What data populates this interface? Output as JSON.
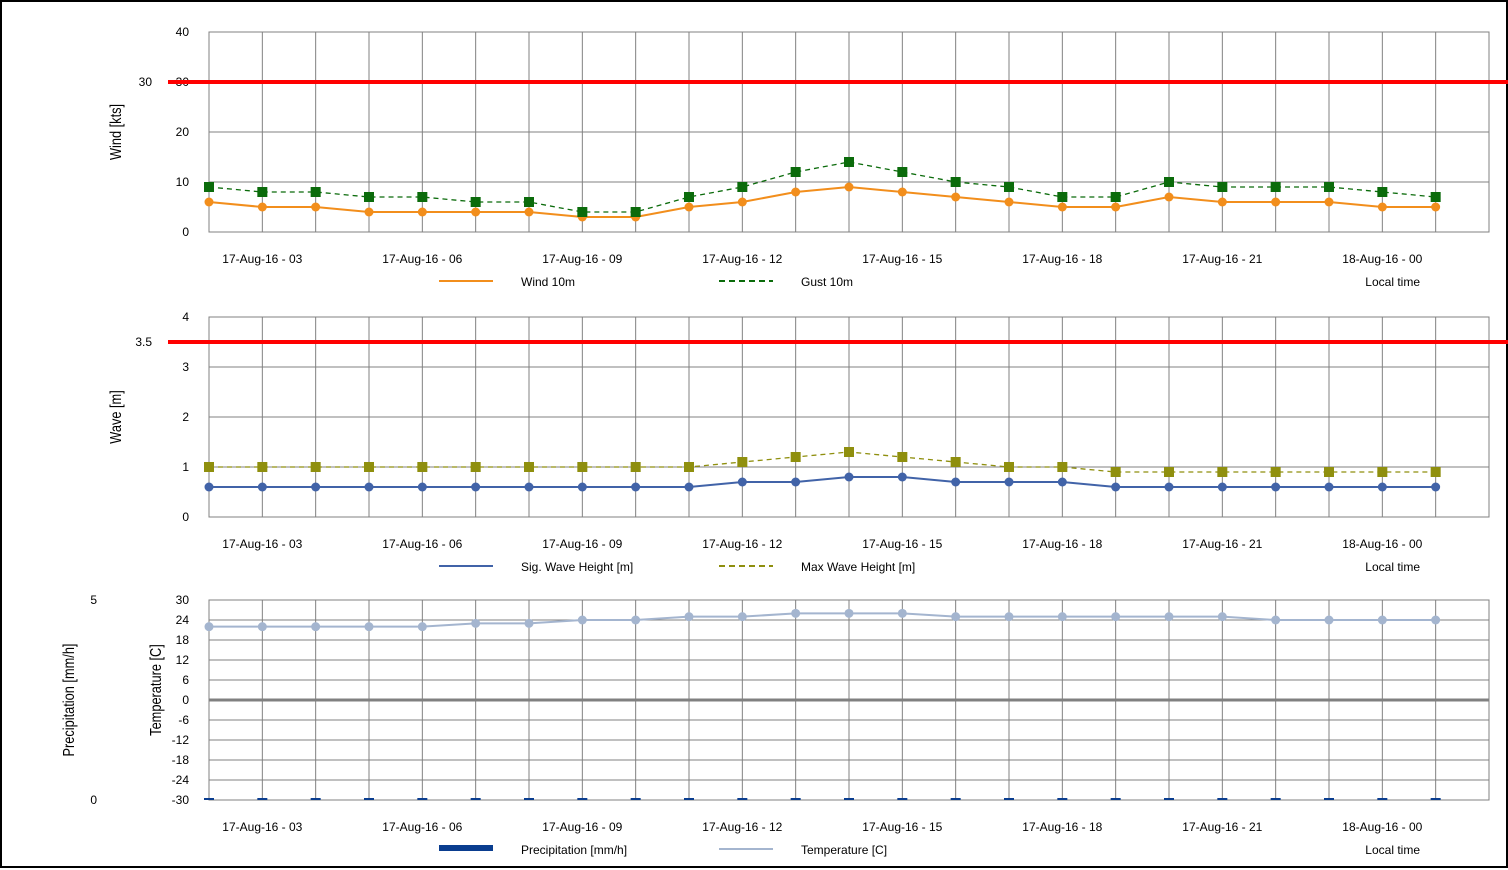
{
  "x_tick_labels": [
    "17-Aug-16 - 03",
    "17-Aug-16 - 06",
    "17-Aug-16 - 09",
    "17-Aug-16 - 12",
    "17-Aug-16 - 15",
    "17-Aug-16 - 18",
    "17-Aug-16 - 21",
    "18-Aug-16 - 00"
  ],
  "local_time_label": "Local time",
  "colors": {
    "threshold": "#ff0000",
    "wind": "#f28e1c",
    "gust": "#0b6b0b",
    "sig_wave": "#4163a8",
    "max_wave": "#8f8f0e",
    "precipitation": "#0a3d8f",
    "temperature": "#a4b5cf",
    "zero_line": "#808080",
    "grid": "#808080"
  },
  "chart_data": [
    {
      "type": "line",
      "id": "wind",
      "ylabel": "Wind [kts]",
      "ylim": [
        0,
        40
      ],
      "yticks": [
        0,
        10,
        20,
        30,
        40
      ],
      "grid": true,
      "legend": "bottom",
      "x": [
        "17-Aug-16 - 02",
        "17-Aug-16 - 03",
        "17-Aug-16 - 04",
        "17-Aug-16 - 05",
        "17-Aug-16 - 06",
        "17-Aug-16 - 07",
        "17-Aug-16 - 08",
        "17-Aug-16 - 09",
        "17-Aug-16 - 10",
        "17-Aug-16 - 11",
        "17-Aug-16 - 12",
        "17-Aug-16 - 13",
        "17-Aug-16 - 14",
        "17-Aug-16 - 15",
        "17-Aug-16 - 16",
        "17-Aug-16 - 17",
        "17-Aug-16 - 18",
        "17-Aug-16 - 19",
        "17-Aug-16 - 20",
        "17-Aug-16 - 21",
        "17-Aug-16 - 22",
        "17-Aug-16 - 23",
        "18-Aug-16 - 00",
        "18-Aug-16 - 01",
        "18-Aug-16 - 02"
      ],
      "threshold": {
        "value": 30,
        "label": "30"
      },
      "series": [
        {
          "name": "Wind 10m",
          "style": "solid",
          "marker": "circle",
          "color_key": "wind",
          "values": [
            6,
            5,
            5,
            4,
            4,
            4,
            4,
            3,
            3,
            5,
            6,
            8,
            9,
            8,
            7,
            6,
            5,
            5,
            7,
            6,
            6,
            6,
            5,
            5,
            null
          ]
        },
        {
          "name": "Gust 10m",
          "style": "dashed",
          "marker": "square",
          "color_key": "gust",
          "values": [
            9,
            8,
            8,
            7,
            7,
            6,
            6,
            4,
            4,
            7,
            9,
            12,
            14,
            12,
            10,
            9,
            7,
            7,
            10,
            9,
            9,
            9,
            8,
            7,
            null
          ]
        }
      ]
    },
    {
      "type": "line",
      "id": "wave",
      "ylabel": "Wave [m]",
      "ylim": [
        0,
        4
      ],
      "yticks": [
        0,
        1,
        2,
        3,
        4
      ],
      "grid": true,
      "legend": "bottom",
      "x": [
        "17-Aug-16 - 02",
        "17-Aug-16 - 03",
        "17-Aug-16 - 04",
        "17-Aug-16 - 05",
        "17-Aug-16 - 06",
        "17-Aug-16 - 07",
        "17-Aug-16 - 08",
        "17-Aug-16 - 09",
        "17-Aug-16 - 10",
        "17-Aug-16 - 11",
        "17-Aug-16 - 12",
        "17-Aug-16 - 13",
        "17-Aug-16 - 14",
        "17-Aug-16 - 15",
        "17-Aug-16 - 16",
        "17-Aug-16 - 17",
        "17-Aug-16 - 18",
        "17-Aug-16 - 19",
        "17-Aug-16 - 20",
        "17-Aug-16 - 21",
        "17-Aug-16 - 22",
        "17-Aug-16 - 23",
        "18-Aug-16 - 00",
        "18-Aug-16 - 01",
        "18-Aug-16 - 02"
      ],
      "threshold": {
        "value": 3.5,
        "label": "3.5"
      },
      "series": [
        {
          "name": "Sig. Wave Height [m]",
          "style": "solid",
          "marker": "circle",
          "color_key": "sig_wave",
          "values": [
            0.6,
            0.6,
            0.6,
            0.6,
            0.6,
            0.6,
            0.6,
            0.6,
            0.6,
            0.6,
            0.7,
            0.7,
            0.8,
            0.8,
            0.7,
            0.7,
            0.7,
            0.6,
            0.6,
            0.6,
            0.6,
            0.6,
            0.6,
            0.6,
            null
          ]
        },
        {
          "name": "Max Wave Height [m]",
          "style": "dashed",
          "marker": "square",
          "color_key": "max_wave",
          "values": [
            1.0,
            1.0,
            1.0,
            1.0,
            1.0,
            1.0,
            1.0,
            1.0,
            1.0,
            1.0,
            1.1,
            1.2,
            1.3,
            1.2,
            1.1,
            1.0,
            1.0,
            0.9,
            0.9,
            0.9,
            0.9,
            0.9,
            0.9,
            0.9,
            null
          ]
        }
      ]
    },
    {
      "type": "line",
      "id": "precip_temp",
      "ylabel": "Precipitation [mm/h]",
      "ylabel_secondary": "Temperature [C]",
      "ylim": [
        0,
        5
      ],
      "yticks": [
        0,
        5
      ],
      "ylim_secondary": [
        -30,
        30
      ],
      "yticks_secondary": [
        -30,
        -24,
        -18,
        -12,
        -6,
        0,
        6,
        12,
        18,
        24,
        30
      ],
      "grid": true,
      "legend": "bottom",
      "x": [
        "17-Aug-16 - 02",
        "17-Aug-16 - 03",
        "17-Aug-16 - 04",
        "17-Aug-16 - 05",
        "17-Aug-16 - 06",
        "17-Aug-16 - 07",
        "17-Aug-16 - 08",
        "17-Aug-16 - 09",
        "17-Aug-16 - 10",
        "17-Aug-16 - 11",
        "17-Aug-16 - 12",
        "17-Aug-16 - 13",
        "17-Aug-16 - 14",
        "17-Aug-16 - 15",
        "17-Aug-16 - 16",
        "17-Aug-16 - 17",
        "17-Aug-16 - 18",
        "17-Aug-16 - 19",
        "17-Aug-16 - 20",
        "17-Aug-16 - 21",
        "17-Aug-16 - 22",
        "17-Aug-16 - 23",
        "18-Aug-16 - 00",
        "18-Aug-16 - 01",
        "18-Aug-16 - 02"
      ],
      "series": [
        {
          "name": "Precipitation [mm/h]",
          "kind": "bar",
          "axis": "primary",
          "color_key": "precipitation",
          "values": [
            0,
            0,
            0,
            0,
            0,
            0,
            0,
            0,
            0,
            0,
            0,
            0,
            0,
            0,
            0,
            0,
            0,
            0,
            0,
            0,
            0,
            0,
            0,
            0,
            null
          ]
        },
        {
          "name": "Temperature [C]",
          "style": "solid",
          "marker": "circle",
          "axis": "secondary",
          "color_key": "temperature",
          "values": [
            22,
            22,
            22,
            22,
            22,
            23,
            23,
            24,
            24,
            25,
            25,
            26,
            26,
            26,
            25,
            25,
            25,
            25,
            25,
            25,
            24,
            24,
            24,
            24,
            null
          ]
        }
      ]
    }
  ]
}
